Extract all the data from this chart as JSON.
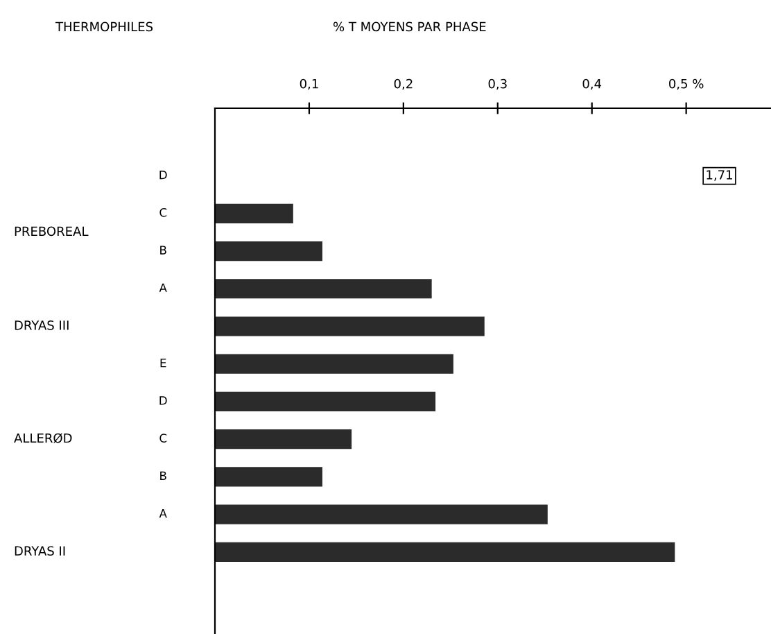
{
  "chart_data": {
    "type": "bar",
    "orientation": "horizontal",
    "title": "THERMOPHILES",
    "subtitle": "% T MOYENS PAR PHASE",
    "categories": [
      "D",
      "C",
      "B",
      "A",
      null,
      "E",
      "D",
      "C",
      "B",
      "A",
      null
    ],
    "values": [
      null,
      0.083,
      0.114,
      0.23,
      0.286,
      0.253,
      0.234,
      0.145,
      0.114,
      0.353,
      0.488
    ],
    "value_labels": [
      "1,71",
      null,
      null,
      null,
      null,
      null,
      null,
      null,
      null,
      null,
      null
    ],
    "color": "#2b2b2b",
    "xlim": [
      0,
      0.59
    ],
    "xticks": [
      {
        "value": 0.1,
        "label": "0,1"
      },
      {
        "value": 0.2,
        "label": "0,2"
      },
      {
        "value": 0.3,
        "label": "0,3"
      },
      {
        "value": 0.4,
        "label": "0,4"
      },
      {
        "value": 0.5,
        "label": "0,5 %"
      }
    ],
    "annotations": [
      "PREBOREAL",
      "DRYAS III",
      "ALLERØD",
      "DRYAS II"
    ],
    "grid": false
  }
}
